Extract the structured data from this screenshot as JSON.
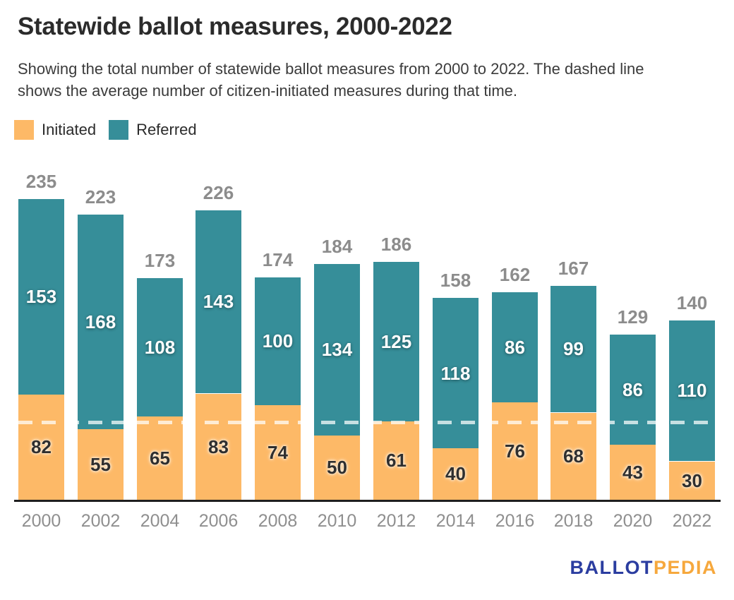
{
  "header": {
    "title": "Statewide ballot measures, 2000-2022",
    "subtitle": "Showing the total number of statewide ballot measures from 2000 to 2022. The dashed line\nshows the average number of citizen-initiated measures during that time."
  },
  "legend": {
    "items": [
      {
        "label": "Initiated",
        "color": "#FDB967"
      },
      {
        "label": "Referred",
        "color": "#368E99"
      }
    ]
  },
  "chart_data": {
    "type": "bar",
    "stacked": true,
    "title": "Statewide ballot measures, 2000-2022",
    "categories": [
      "2000",
      "2002",
      "2004",
      "2006",
      "2008",
      "2010",
      "2012",
      "2014",
      "2016",
      "2018",
      "2020",
      "2022"
    ],
    "series": [
      {
        "name": "Initiated",
        "color": "#FDB967",
        "values": [
          82,
          55,
          65,
          83,
          74,
          50,
          61,
          40,
          76,
          68,
          43,
          30
        ]
      },
      {
        "name": "Referred",
        "color": "#368E99",
        "values": [
          153,
          168,
          108,
          143,
          100,
          134,
          125,
          118,
          86,
          99,
          86,
          110
        ]
      }
    ],
    "totals": [
      235,
      223,
      173,
      226,
      174,
      184,
      186,
      158,
      162,
      167,
      129,
      140
    ],
    "average_line": {
      "describes": "average number of citizen-initiated measures 2000-2022",
      "series": "Initiated",
      "value": 60.6,
      "style": "dashed",
      "color": "rgba(255,255,255,0.72)"
    },
    "ylim": [
      0,
      235
    ],
    "grid": false,
    "legend_position": "top-left",
    "axis_color": "#1F1F1F",
    "total_label_color": "#8C8C8C",
    "x_label_color": "#8F8F8F"
  },
  "footer": {
    "logo": [
      {
        "text": "BALLOT",
        "color": "#2B3DA0"
      },
      {
        "text": "PEDIA",
        "color": "#F6A83D"
      }
    ]
  }
}
